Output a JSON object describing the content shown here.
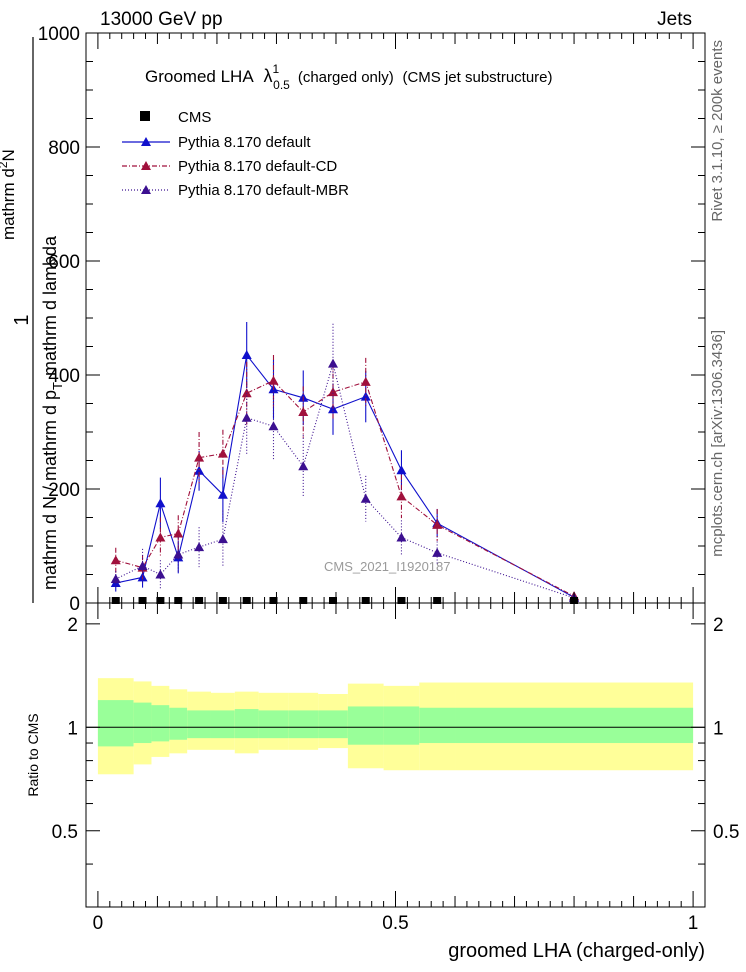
{
  "header": {
    "left": "13000 GeV pp",
    "right": "Jets"
  },
  "side_text": {
    "right_top": "Rivet 3.1.10, ≥ 200k events",
    "right_bottom": "mcplots.cern.ch [arXiv:1306.3436]"
  },
  "main_plot": {
    "title_prefix": "Groomed LHA",
    "title_symbol": "λ",
    "title_sup": "1",
    "title_sub": "0.5",
    "title_paren1": "(charged only)",
    "title_paren2": "(CMS jet substructure)",
    "ylabel_left": "mathrm d N / mathrm d p",
    "ylabel_left_sub": "T",
    "ylabel_left_tail": "mathrm d lambda",
    "ylabel_right": "mathrm d",
    "ylabel_right_sup": "2",
    "ylabel_right_tail": "N",
    "ylabel_one": "1",
    "watermark": "CMS_2021_I1920187",
    "legend": [
      "CMS",
      "Pythia 8.170 default",
      "Pythia 8.170 default-CD",
      "Pythia 8.170 default-MBR"
    ]
  },
  "ratio_plot": {
    "ylabel": "Ratio to CMS",
    "xlabel": "groomed LHA (charged-only)"
  },
  "colors": {
    "default": "#1010cc",
    "cd": "#a0103c",
    "mbr": "#3c1090",
    "band_inner": "#99ff99",
    "band_outer": "#ffff99"
  },
  "chart_data": [
    {
      "type": "line",
      "title": "Groomed LHA λ^1_0.5 (charged only) (CMS jet substructure)",
      "ylim": [
        0,
        1000
      ],
      "xlim": [
        -0.02,
        1.02
      ],
      "yticks": [
        0,
        200,
        400,
        600,
        800,
        1000
      ],
      "data_series": {
        "name": "CMS",
        "x": [
          0.03,
          0.075,
          0.105,
          0.135,
          0.17,
          0.21,
          0.25,
          0.295,
          0.345,
          0.395,
          0.45,
          0.51,
          0.57,
          0.8
        ],
        "values": [
          0,
          0,
          0,
          0,
          0,
          0,
          0,
          0,
          0,
          0,
          0,
          0,
          0,
          0
        ]
      },
      "series": [
        {
          "name": "Pythia 8.170 default",
          "x": [
            0.03,
            0.075,
            0.105,
            0.135,
            0.17,
            0.21,
            0.25,
            0.295,
            0.345,
            0.395,
            0.45,
            0.51,
            0.57,
            0.8
          ],
          "values": [
            35,
            45,
            175,
            80,
            232,
            190,
            435,
            375,
            360,
            340,
            362,
            233,
            140,
            10
          ],
          "errors": [
            15,
            18,
            45,
            28,
            35,
            48,
            58,
            52,
            48,
            45,
            45,
            35,
            25,
            5
          ]
        },
        {
          "name": "Pythia 8.170 default-CD",
          "x": [
            0.03,
            0.075,
            0.105,
            0.135,
            0.17,
            0.21,
            0.25,
            0.295,
            0.345,
            0.395,
            0.45,
            0.51,
            0.57,
            0.8
          ],
          "values": [
            75,
            62,
            115,
            122,
            255,
            262,
            368,
            390,
            335,
            370,
            388,
            187,
            137,
            12
          ],
          "errors": [
            22,
            22,
            35,
            32,
            45,
            42,
            55,
            45,
            45,
            50,
            42,
            38,
            28,
            5
          ]
        },
        {
          "name": "Pythia 8.170 default-MBR",
          "x": [
            0.03,
            0.075,
            0.105,
            0.135,
            0.17,
            0.21,
            0.25,
            0.295,
            0.345,
            0.395,
            0.45,
            0.51,
            0.57,
            0.8
          ],
          "values": [
            42,
            65,
            50,
            85,
            98,
            112,
            325,
            310,
            240,
            420,
            183,
            115,
            88,
            9
          ],
          "errors": [
            14,
            30,
            25,
            30,
            35,
            50,
            65,
            60,
            55,
            70,
            40,
            30,
            20,
            5
          ]
        }
      ]
    },
    {
      "type": "area",
      "title": "Ratio to CMS",
      "ylim": [
        0.3,
        2.3
      ],
      "yticks": [
        0.5,
        1,
        2
      ],
      "xticks": [
        0,
        0.5,
        1
      ],
      "xlabel": "groomed LHA (charged-only)",
      "ylabel": "Ratio to CMS",
      "bins": [
        0,
        0.06,
        0.09,
        0.12,
        0.15,
        0.19,
        0.23,
        0.27,
        0.32,
        0.37,
        0.42,
        0.48,
        0.54,
        0.6,
        1.0
      ],
      "band_inner": [
        [
          0.88,
          1.2
        ],
        [
          0.9,
          1.18
        ],
        [
          0.91,
          1.16
        ],
        [
          0.92,
          1.14
        ],
        [
          0.93,
          1.12
        ],
        [
          0.93,
          1.12
        ],
        [
          0.93,
          1.13
        ],
        [
          0.93,
          1.12
        ],
        [
          0.93,
          1.12
        ],
        [
          0.93,
          1.12
        ],
        [
          0.89,
          1.15
        ],
        [
          0.89,
          1.15
        ],
        [
          0.9,
          1.14
        ],
        [
          0.9,
          1.14
        ]
      ],
      "band_outer": [
        [
          0.73,
          1.39
        ],
        [
          0.78,
          1.36
        ],
        [
          0.82,
          1.32
        ],
        [
          0.84,
          1.29
        ],
        [
          0.86,
          1.27
        ],
        [
          0.86,
          1.26
        ],
        [
          0.84,
          1.27
        ],
        [
          0.86,
          1.26
        ],
        [
          0.86,
          1.26
        ],
        [
          0.87,
          1.25
        ],
        [
          0.76,
          1.34
        ],
        [
          0.75,
          1.32
        ],
        [
          0.75,
          1.35
        ],
        [
          0.75,
          1.35
        ]
      ]
    }
  ]
}
